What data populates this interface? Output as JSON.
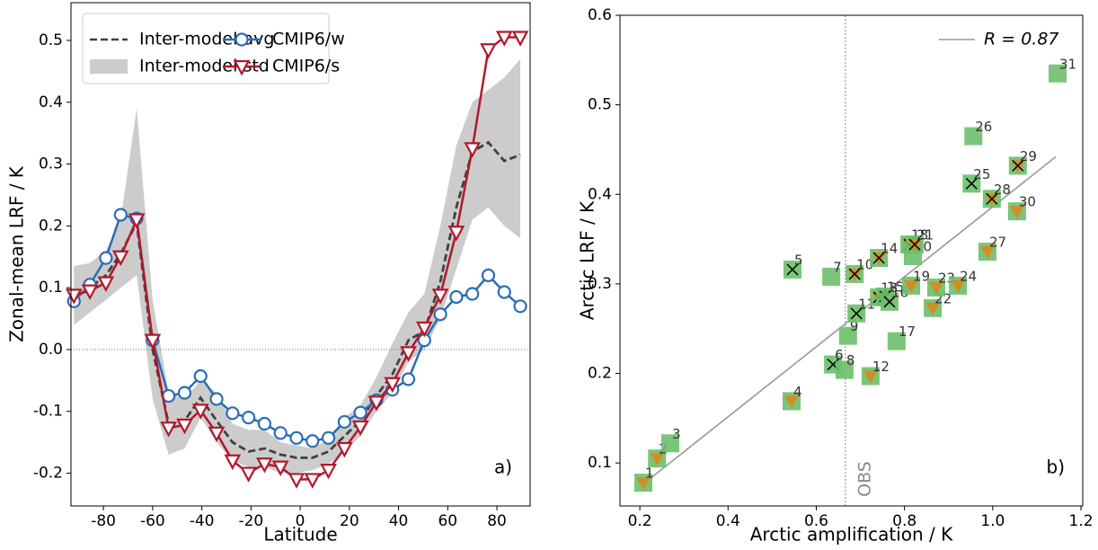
{
  "chart_data": [
    {
      "type": "line",
      "x_label": "Latitude",
      "y_label": "Zonal-mean LRF / K",
      "annotation": "a)",
      "xlim": [
        -93.2,
        93.5
      ],
      "ylim": [
        -0.253,
        0.561
      ],
      "xticks": [
        -80,
        -60,
        -40,
        -20,
        0,
        20,
        40,
        60,
        80
      ],
      "yticks": [
        -0.2,
        -0.1,
        {
          "value": 0,
          "label": "0.0"
        },
        0.1,
        0.2,
        0.3,
        0.4,
        0.5
      ],
      "hline": 0,
      "legend": "upper left",
      "x": [
        -92,
        -85.5,
        -79,
        -73,
        -66.5,
        -60,
        -53.5,
        -47,
        -40.5,
        -34,
        -27.5,
        -21,
        -14.5,
        -8,
        -1.5,
        5,
        11.5,
        18,
        24.5,
        31,
        37.5,
        44,
        50.5,
        57,
        63.5,
        70,
        76.5,
        83,
        89.5
      ],
      "band": {
        "name": "Inter-model std",
        "color": "#cccccc",
        "lower": [
          0.04,
          0.06,
          0.08,
          0.1,
          0.12,
          -0.08,
          -0.17,
          -0.16,
          -0.11,
          -0.15,
          -0.18,
          -0.19,
          -0.19,
          -0.2,
          -0.2,
          -0.195,
          -0.185,
          -0.165,
          -0.14,
          -0.1,
          -0.07,
          -0.02,
          0.0,
          0.05,
          0.13,
          0.21,
          0.23,
          0.2,
          0.18
        ],
        "upper": [
          0.135,
          0.14,
          0.16,
          0.21,
          0.39,
          0.08,
          -0.07,
          -0.08,
          -0.05,
          -0.07,
          -0.12,
          -0.13,
          -0.13,
          -0.15,
          -0.155,
          -0.16,
          -0.145,
          -0.11,
          -0.09,
          -0.045,
          0.01,
          0.06,
          0.09,
          0.2,
          0.33,
          0.4,
          0.42,
          0.44,
          0.47
        ]
      },
      "series": [
        {
          "name": "Inter-model avg",
          "color": "#404040",
          "linestyle": "dashed",
          "values": [
            0.085,
            0.1,
            0.12,
            0.155,
            0.205,
            0.0,
            -0.12,
            -0.115,
            -0.078,
            -0.115,
            -0.15,
            -0.165,
            -0.16,
            -0.17,
            -0.175,
            -0.175,
            -0.165,
            -0.14,
            -0.115,
            -0.075,
            -0.04,
            0.015,
            0.03,
            0.11,
            0.23,
            0.32,
            0.335,
            0.305,
            0.315
          ]
        },
        {
          "name": "CMIP6/w",
          "color": "#2a6db5",
          "marker": "circle",
          "values": [
            0.078,
            0.105,
            0.148,
            0.218,
            0.212,
            0.015,
            -0.075,
            -0.07,
            -0.043,
            -0.08,
            -0.103,
            -0.11,
            -0.12,
            -0.135,
            -0.143,
            -0.148,
            -0.143,
            -0.117,
            -0.102,
            -0.082,
            -0.065,
            -0.048,
            0.015,
            0.057,
            0.085,
            0.09,
            0.12,
            0.093,
            0.07
          ]
        },
        {
          "name": "CMIP6/s",
          "color": "#b2182b",
          "marker": "triangle-down",
          "values": [
            0.088,
            0.095,
            0.108,
            0.15,
            0.21,
            0.015,
            -0.127,
            -0.122,
            -0.098,
            -0.135,
            -0.18,
            -0.2,
            -0.185,
            -0.19,
            -0.21,
            -0.21,
            -0.195,
            -0.16,
            -0.125,
            -0.085,
            -0.055,
            -0.005,
            0.035,
            0.088,
            0.19,
            0.325,
            0.485,
            0.505,
            0.505
          ]
        }
      ]
    },
    {
      "type": "scatter",
      "x_label": "Arctic amplification / K",
      "y_label": "Arctic LRF / K",
      "annotation": "b)",
      "xlim": [
        0.155,
        1.204
      ],
      "ylim": [
        0.052,
        0.6
      ],
      "xticks": [
        0.2,
        0.4,
        0.6,
        0.8,
        {
          "value": 1,
          "label": "1.0"
        },
        1.2
      ],
      "yticks": [
        0.1,
        0.2,
        0.3,
        0.4,
        0.5,
        0.6
      ],
      "vline": {
        "value": 0.666,
        "label": "OBS"
      },
      "legend": "upper right",
      "color": "#6cbf6a",
      "overlay_colors": {
        "triangle": "#d08e26",
        "cross": "#000000"
      },
      "labels": [
        "1",
        "2",
        "3",
        "4",
        "5",
        "6",
        "7",
        "8",
        "9",
        "10",
        "11",
        "12",
        "13",
        "14",
        "15",
        "16",
        "17",
        "18",
        "19",
        "20",
        "21",
        "22",
        "23",
        "24",
        "25",
        "26",
        "27",
        "28",
        "29",
        "30",
        "31"
      ],
      "x": [
        0.208,
        0.239,
        0.269,
        0.544,
        0.546,
        0.638,
        0.634,
        0.664,
        0.672,
        0.687,
        0.691,
        0.723,
        0.742,
        0.742,
        0.756,
        0.766,
        0.782,
        0.811,
        0.815,
        0.819,
        0.823,
        0.864,
        0.872,
        0.921,
        0.952,
        0.956,
        0.988,
        0.998,
        1.057,
        1.055,
        1.147
      ],
      "y": [
        0.078,
        0.105,
        0.122,
        0.169,
        0.316,
        0.21,
        0.308,
        0.204,
        0.242,
        0.311,
        0.267,
        0.197,
        0.285,
        0.329,
        0.286,
        0.28,
        0.236,
        0.344,
        0.298,
        0.331,
        0.344,
        0.273,
        0.296,
        0.298,
        0.412,
        0.465,
        0.336,
        0.395,
        0.432,
        0.381,
        0.535
      ],
      "overlay": [
        "triangle",
        "triangle",
        null,
        "triangle",
        "cross",
        "cross",
        null,
        null,
        null,
        "both",
        "cross",
        "triangle",
        "both",
        "both",
        "cross",
        "cross",
        null,
        "both",
        "triangle",
        null,
        "both",
        "triangle",
        "triangle",
        "triangle",
        "cross",
        null,
        "triangle",
        "both",
        "both",
        "triangle",
        null
      ],
      "fit": {
        "name": "R = 0.87",
        "color": "#999999",
        "x": [
          0.204,
          1.143
        ],
        "y": [
          0.075,
          0.442
        ]
      }
    }
  ]
}
